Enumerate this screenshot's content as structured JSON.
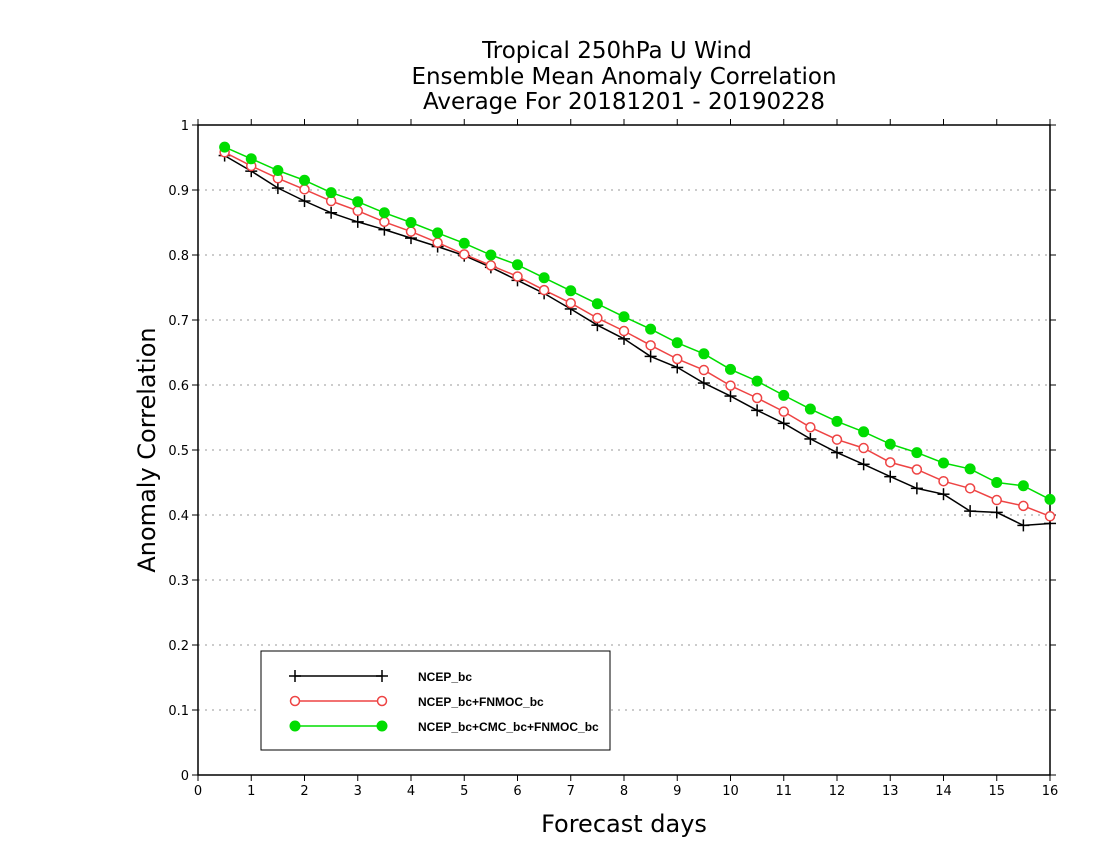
{
  "chart_data": {
    "type": "line",
    "title": [
      "Tropical 250hPa U Wind",
      "Ensemble Mean Anomaly Correlation",
      "Average For 20181201 - 20190228"
    ],
    "xlabel": "Forecast days",
    "ylabel": "Anomaly Correlation",
    "xlim": [
      0,
      16
    ],
    "ylim": [
      0,
      1
    ],
    "xticks": [
      "0",
      "1",
      "2",
      "3",
      "4",
      "5",
      "6",
      "7",
      "8",
      "9",
      "10",
      "11",
      "12",
      "13",
      "14",
      "15",
      "16"
    ],
    "yticks": [
      "0",
      "0.1",
      "0.2",
      "0.3",
      "0.4",
      "0.5",
      "0.6",
      "0.7",
      "0.8",
      "0.9",
      "1"
    ],
    "grid": "horizontal dotted",
    "legend_position": "bottom-left",
    "x": [
      0.5,
      1,
      1.5,
      2,
      2.5,
      3,
      3.5,
      4,
      4.5,
      5,
      5.5,
      6,
      6.5,
      7,
      7.5,
      8,
      8.5,
      9,
      9.5,
      10,
      10.5,
      11,
      11.5,
      12,
      12.5,
      13,
      13.5,
      14,
      14.5,
      15,
      15.5,
      16
    ],
    "series": [
      {
        "name": "NCEP_bc",
        "color": "#000000",
        "marker": "plus",
        "values": [
          0.953,
          0.929,
          0.903,
          0.883,
          0.865,
          0.851,
          0.839,
          0.826,
          0.813,
          0.799,
          0.781,
          0.761,
          0.741,
          0.717,
          0.692,
          0.671,
          0.644,
          0.627,
          0.603,
          0.583,
          0.561,
          0.541,
          0.517,
          0.496,
          0.478,
          0.459,
          0.441,
          0.432,
          0.406,
          0.404,
          0.384,
          0.387
        ]
      },
      {
        "name": "NCEP_bc+FNMOC_bc",
        "color": "#ee4444",
        "marker": "open-circle",
        "values": [
          0.958,
          0.937,
          0.918,
          0.901,
          0.883,
          0.868,
          0.851,
          0.836,
          0.819,
          0.801,
          0.784,
          0.767,
          0.746,
          0.726,
          0.703,
          0.683,
          0.661,
          0.64,
          0.623,
          0.599,
          0.58,
          0.559,
          0.535,
          0.516,
          0.503,
          0.481,
          0.47,
          0.452,
          0.441,
          0.423,
          0.414,
          0.398
        ]
      },
      {
        "name": "NCEP_bc+CMC_bc+FNMOC_bc",
        "color": "#00dd00",
        "marker": "filled-circle",
        "values": [
          0.966,
          0.948,
          0.93,
          0.915,
          0.896,
          0.882,
          0.865,
          0.85,
          0.834,
          0.818,
          0.8,
          0.785,
          0.765,
          0.745,
          0.725,
          0.705,
          0.686,
          0.665,
          0.648,
          0.624,
          0.606,
          0.584,
          0.563,
          0.544,
          0.528,
          0.509,
          0.496,
          0.48,
          0.471,
          0.45,
          0.445,
          0.424
        ]
      }
    ]
  }
}
